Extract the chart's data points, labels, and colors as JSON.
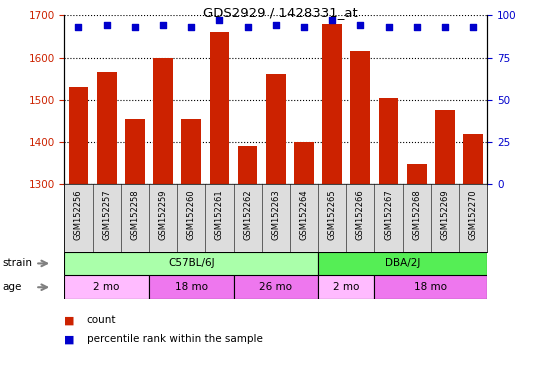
{
  "title": "GDS2929 / 1428331_at",
  "samples": [
    "GSM152256",
    "GSM152257",
    "GSM152258",
    "GSM152259",
    "GSM152260",
    "GSM152261",
    "GSM152262",
    "GSM152263",
    "GSM152264",
    "GSM152265",
    "GSM152266",
    "GSM152267",
    "GSM152268",
    "GSM152269",
    "GSM152270"
  ],
  "counts": [
    1530,
    1565,
    1455,
    1600,
    1455,
    1660,
    1390,
    1560,
    1400,
    1680,
    1615,
    1505,
    1348,
    1475,
    1420
  ],
  "percentile_ranks": [
    93,
    94,
    93,
    94,
    93,
    97,
    93,
    94,
    93,
    97,
    94,
    93,
    93,
    93,
    93
  ],
  "ylim_left": [
    1300,
    1700
  ],
  "ylim_right": [
    0,
    100
  ],
  "yticks_left": [
    1300,
    1400,
    1500,
    1600,
    1700
  ],
  "yticks_right": [
    0,
    25,
    50,
    75,
    100
  ],
  "bar_color": "#cc2200",
  "dot_color": "#0000cc",
  "label_bg_color": "#dddddd",
  "strain_groups": [
    {
      "label": "C57BL/6J",
      "start": 0,
      "end": 9,
      "color": "#aaffaa"
    },
    {
      "label": "DBA/2J",
      "start": 9,
      "end": 15,
      "color": "#55ee55"
    }
  ],
  "age_groups": [
    {
      "label": "2 mo",
      "start": 0,
      "end": 3,
      "color": "#ffbbff"
    },
    {
      "label": "18 mo",
      "start": 3,
      "end": 6,
      "color": "#ee77ee"
    },
    {
      "label": "26 mo",
      "start": 6,
      "end": 9,
      "color": "#ee77ee"
    },
    {
      "label": "2 mo",
      "start": 9,
      "end": 11,
      "color": "#ffbbff"
    },
    {
      "label": "18 mo",
      "start": 11,
      "end": 15,
      "color": "#ee77ee"
    }
  ]
}
